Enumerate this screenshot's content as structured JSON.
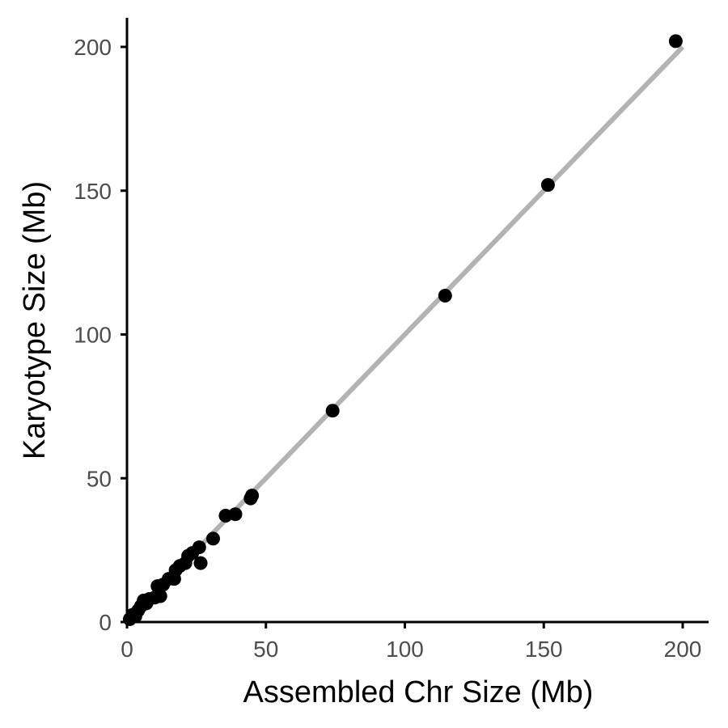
{
  "chart_data": {
    "type": "scatter",
    "xlabel": "Assembled Chr Size (Mb)",
    "ylabel": "Karyotype Size (Mb)",
    "xlim": [
      0,
      210
    ],
    "ylim": [
      0,
      210
    ],
    "x_ticks": [
      0,
      50,
      100,
      150,
      200
    ],
    "y_ticks": [
      0,
      50,
      100,
      150,
      200
    ],
    "grid": false,
    "legend": "none",
    "reference_line": {
      "from": [
        0,
        0
      ],
      "to": [
        200,
        200
      ],
      "color": "#b3b3b3"
    },
    "point_color": "#000000",
    "points": [
      {
        "x": 1,
        "y": 1
      },
      {
        "x": 2,
        "y": 2.5
      },
      {
        "x": 3,
        "y": 2
      },
      {
        "x": 4,
        "y": 4
      },
      {
        "x": 5,
        "y": 5.5
      },
      {
        "x": 6,
        "y": 7.5
      },
      {
        "x": 7,
        "y": 6.5
      },
      {
        "x": 8,
        "y": 8
      },
      {
        "x": 10,
        "y": 8.5
      },
      {
        "x": 11,
        "y": 12.5
      },
      {
        "x": 12,
        "y": 9
      },
      {
        "x": 13,
        "y": 13
      },
      {
        "x": 15,
        "y": 15
      },
      {
        "x": 17,
        "y": 15
      },
      {
        "x": 17.5,
        "y": 18
      },
      {
        "x": 19,
        "y": 19.5
      },
      {
        "x": 21,
        "y": 20.5
      },
      {
        "x": 22,
        "y": 23
      },
      {
        "x": 23.5,
        "y": 24
      },
      {
        "x": 26,
        "y": 26
      },
      {
        "x": 26.5,
        "y": 20.5
      },
      {
        "x": 31,
        "y": 29
      },
      {
        "x": 35.5,
        "y": 37
      },
      {
        "x": 39,
        "y": 37.5
      },
      {
        "x": 44.5,
        "y": 43
      },
      {
        "x": 45,
        "y": 44
      },
      {
        "x": 74,
        "y": 73.5
      },
      {
        "x": 114.5,
        "y": 113.5
      },
      {
        "x": 151.5,
        "y": 152
      },
      {
        "x": 197.5,
        "y": 202
      }
    ]
  }
}
